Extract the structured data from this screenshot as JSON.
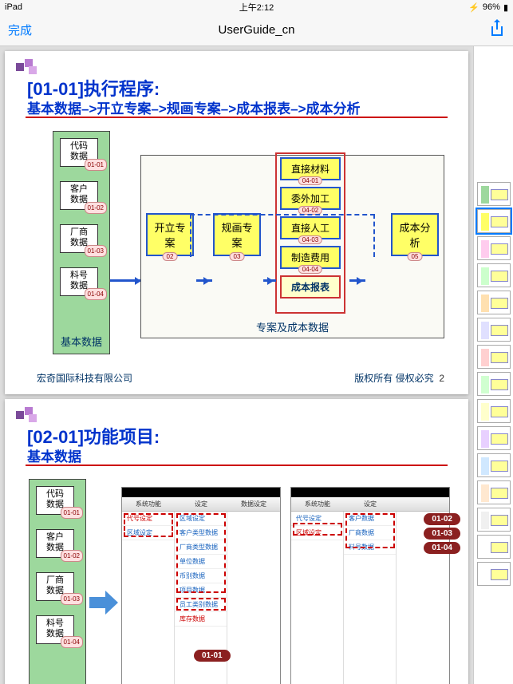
{
  "status": {
    "device": "iPad",
    "time": "上午2:12",
    "battery": "96%",
    "bt": "᚛",
    "batt_icon": "▮"
  },
  "nav": {
    "done": "完成",
    "title": "UserGuide_cn"
  },
  "slide1": {
    "title": "[01-01]执行程序:",
    "subtitle": "基本数据–>开立专案–>规画专案–>成本报表–>成本分析",
    "basic_label": "基本数据",
    "minis": [
      {
        "t1": "代码",
        "t2": "数据",
        "tag": "01-01"
      },
      {
        "t1": "客户",
        "t2": "数据",
        "tag": "01-02"
      },
      {
        "t1": "厂商",
        "t2": "数据",
        "tag": "01-03"
      },
      {
        "t1": "料号",
        "t2": "数据",
        "tag": "01-04"
      }
    ],
    "proj_label": "专案及成本数据",
    "open": {
      "label": "开立专案",
      "tag": "02"
    },
    "plan": {
      "label": "规画专案",
      "tag": "03"
    },
    "anal": {
      "label": "成本分析",
      "tag": "05"
    },
    "costs": [
      {
        "label": "直接材料",
        "tag": "04-01"
      },
      {
        "label": "委外加工",
        "tag": "04-02"
      },
      {
        "label": "直接人工",
        "tag": "04-03"
      },
      {
        "label": "制造费用",
        "tag": "04-04"
      }
    ],
    "cost_report": "成本报表",
    "company": "宏奇国际科技有限公司",
    "rights": "版权所有 侵权必究",
    "page": "2"
  },
  "slide2": {
    "title": "[02-01]功能项目:",
    "subtitle": "基本数据",
    "minis": [
      {
        "t1": "代码",
        "t2": "数据",
        "tag": "01-01"
      },
      {
        "t1": "客户",
        "t2": "数据",
        "tag": "01-02"
      },
      {
        "t1": "厂商",
        "t2": "数据",
        "tag": "01-03"
      },
      {
        "t1": "料号",
        "t2": "数据",
        "tag": "01-04"
      }
    ],
    "shot_hdr": [
      "",
      "系统功能",
      "设定",
      "数据设定"
    ],
    "shot1_colA": [
      {
        "t": "代号设定",
        "hl": true
      },
      {
        "t": "区域设定",
        "hl": false
      }
    ],
    "shot1_colB": [
      {
        "t": "区域设定"
      },
      {
        "t": "客户类型数据"
      },
      {
        "t": "厂商类型数据"
      },
      {
        "t": "单位数据"
      },
      {
        "t": "币别数据"
      },
      {
        "t": "项目数据"
      },
      {
        "t": "员工类别数据"
      }
    ],
    "shot1_colB_last": "库存数据",
    "shot2_colA": [
      {
        "t": "代号设定"
      },
      {
        "t": "区域设定",
        "hl": true
      }
    ],
    "shot2_colB": [
      {
        "t": "客户数据"
      },
      {
        "t": "厂商数据"
      },
      {
        "t": "料号数据"
      }
    ],
    "pills": {
      "p0101": "01-01",
      "p0102": "01-02",
      "p0103": "01-03",
      "p0104": "01-04"
    }
  },
  "thumbs": {
    "count": 15,
    "selected": 1,
    "colors": [
      "#9dd89d",
      "#ffff66",
      "#ffccee",
      "#ccffcc",
      "#ffe0b0",
      "#e0e0ff",
      "#ffd0d0",
      "#d0ffd0",
      "#ffffcc",
      "#e8d0ff",
      "#d0e8ff",
      "#ffe8d0",
      "#f0f0f0",
      "#ffffff",
      "#ffffff"
    ]
  },
  "colors": {
    "title_blue": "#0033cc",
    "box_yellow": "#ffff66",
    "box_border": "#2255cc",
    "green": "#9dd89d",
    "red": "#cc0000",
    "darkred": "#8b2020",
    "ios_blue": "#007aff"
  }
}
